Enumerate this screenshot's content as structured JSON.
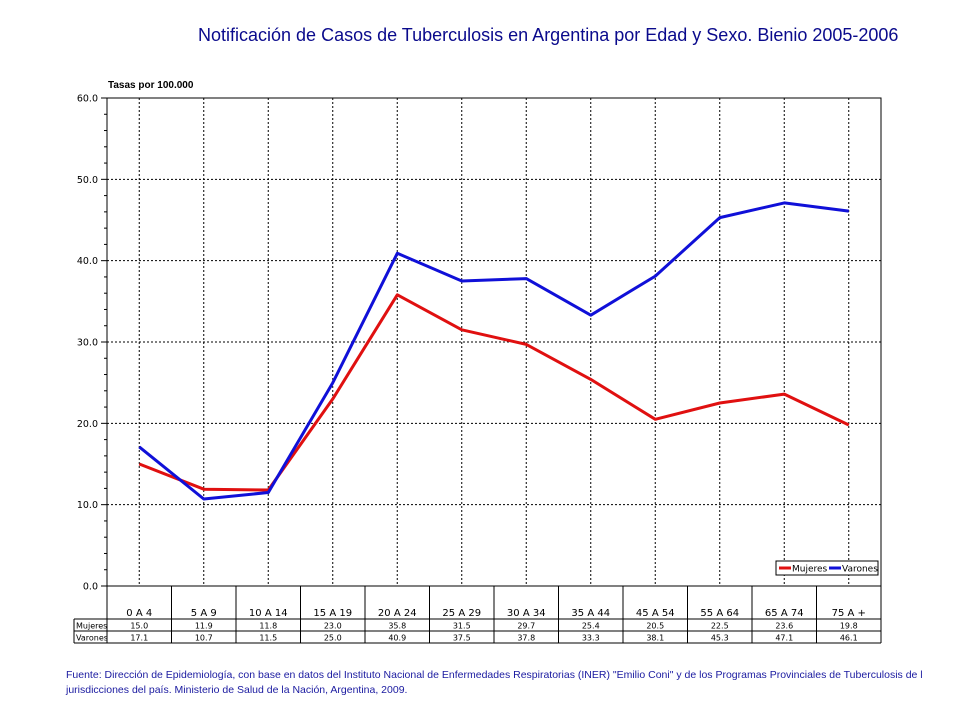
{
  "chart_data": {
    "type": "line",
    "title": "Notificación de Casos de Tuberculosis en Argentina por Edad y Sexo. Bienio 2005-2006",
    "ylabel": "Tasas por 100.000",
    "xlabel": "",
    "ylim": [
      0,
      60
    ],
    "yticks": [
      "0.0",
      "10.0",
      "20.0",
      "30.0",
      "40.0",
      "50.0",
      "60.0"
    ],
    "grid": true,
    "legend_position": "bottom-right",
    "categories": [
      "0 A 4",
      "5 A 9",
      "10 A 14",
      "15 A 19",
      "20 A 24",
      "25 A 29",
      "30 A 34",
      "35 A 44",
      "45 A 54",
      "55 A 64",
      "65 A 74",
      "75 A +"
    ],
    "series": [
      {
        "name": "Mujeres",
        "color": "#e01010",
        "values": [
          15.0,
          11.9,
          11.8,
          23.0,
          35.8,
          31.5,
          29.7,
          25.4,
          20.5,
          22.5,
          23.6,
          19.8
        ],
        "labels": [
          "15.0",
          "11.9",
          "11.8",
          "23.0",
          "35.8",
          "31.5",
          "29.7",
          "25.4",
          "20.5",
          "22.5",
          "23.6",
          "19.8"
        ]
      },
      {
        "name": "Varones",
        "color": "#1010d8",
        "values": [
          17.1,
          10.7,
          11.5,
          25.0,
          40.9,
          37.5,
          37.8,
          33.3,
          38.1,
          45.3,
          47.1,
          46.1
        ],
        "labels": [
          "17.1",
          "10.7",
          "11.5",
          "25.0",
          "40.9",
          "37.5",
          "37.8",
          "33.3",
          "38.1",
          "45.3",
          "47.1",
          "46.1"
        ]
      }
    ]
  },
  "source": {
    "line1": "Fuente: Dirección de Epidemiología, con base en datos del Instituto Nacional de Enfermedades Respiratorias (INER) \"Emilio Coni\" y de los Programas Provinciales de Tuberculosis de l",
    "line2": "jurisdicciones del país. Ministerio de Salud de la Nación, Argentina, 2009."
  }
}
